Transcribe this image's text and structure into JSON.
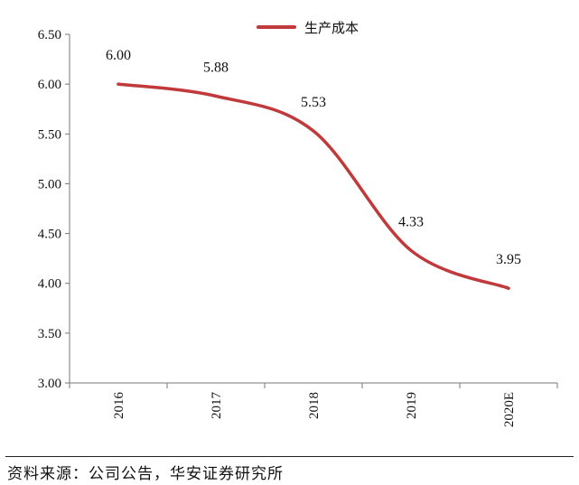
{
  "chart_data": {
    "type": "line",
    "categories": [
      "2016",
      "2017",
      "2018",
      "2019",
      "2020E"
    ],
    "series": [
      {
        "name": "生产成本",
        "values": [
          6.0,
          5.88,
          5.53,
          4.33,
          3.95
        ],
        "color": "#c0393b"
      }
    ],
    "data_labels": [
      "6.00",
      "5.88",
      "5.53",
      "4.33",
      "3.95"
    ],
    "ylim": [
      3.0,
      6.5
    ],
    "yticks": [
      "3.00",
      "3.50",
      "4.00",
      "4.50",
      "5.00",
      "5.50",
      "6.00",
      "6.50"
    ],
    "legend_position": "top-center",
    "grid": false,
    "smooth": true
  },
  "source_note": "资料来源：公司公告，华安证券研究所"
}
